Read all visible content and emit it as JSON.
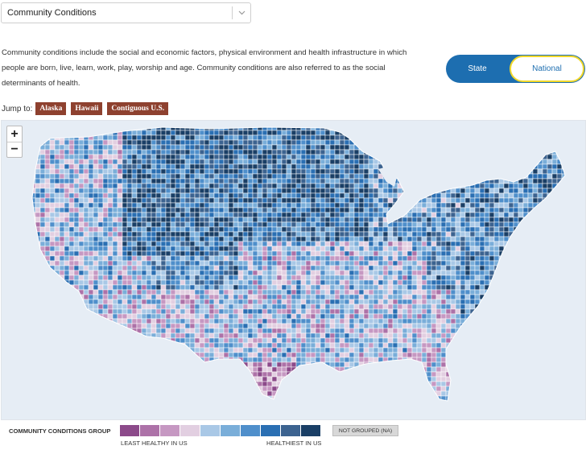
{
  "dropdown": {
    "value": "Community Conditions",
    "icon": "chevron-down-icon"
  },
  "description": "Community conditions include the social and economic factors, physical environment and health infrastructure in which people are born, live, learn, work, play, worship and age. Community conditions are also referred to as the social determinants of health.",
  "toggle": {
    "state_label": "State",
    "national_label": "National",
    "selected": "National",
    "accent": "#1d6eb0",
    "highlight": "#f2d829"
  },
  "jump": {
    "label": "Jump to:",
    "buttons": [
      "Alaska",
      "Hawaii",
      "Contiguous U.S."
    ],
    "button_color": "#8e412f"
  },
  "map": {
    "zoom_in": "+",
    "zoom_out": "−",
    "background": "#e6edf5",
    "region": "Contiguous U.S. counties",
    "palette": [
      "#8c4a8a",
      "#ad72a8",
      "#c698c2",
      "#e2cfe1",
      "#a9c8e6",
      "#7aaed9",
      "#4f8fcb",
      "#2a6fb3",
      "#3c6390",
      "#1a3f66"
    ]
  },
  "legend": {
    "title": "COMMUNITY CONDITIONS GROUP",
    "low_label": "LEAST HEALTHY IN US",
    "high_label": "HEALTHIEST IN US",
    "na_label": "NOT GROUPED (NA)",
    "colors": [
      "#8c4a8a",
      "#ad72a8",
      "#c698c2",
      "#e2cfe1",
      "#a9c8e6",
      "#7aaed9",
      "#4f8fcb",
      "#2a6fb3",
      "#3c6390",
      "#1a3f66"
    ]
  }
}
